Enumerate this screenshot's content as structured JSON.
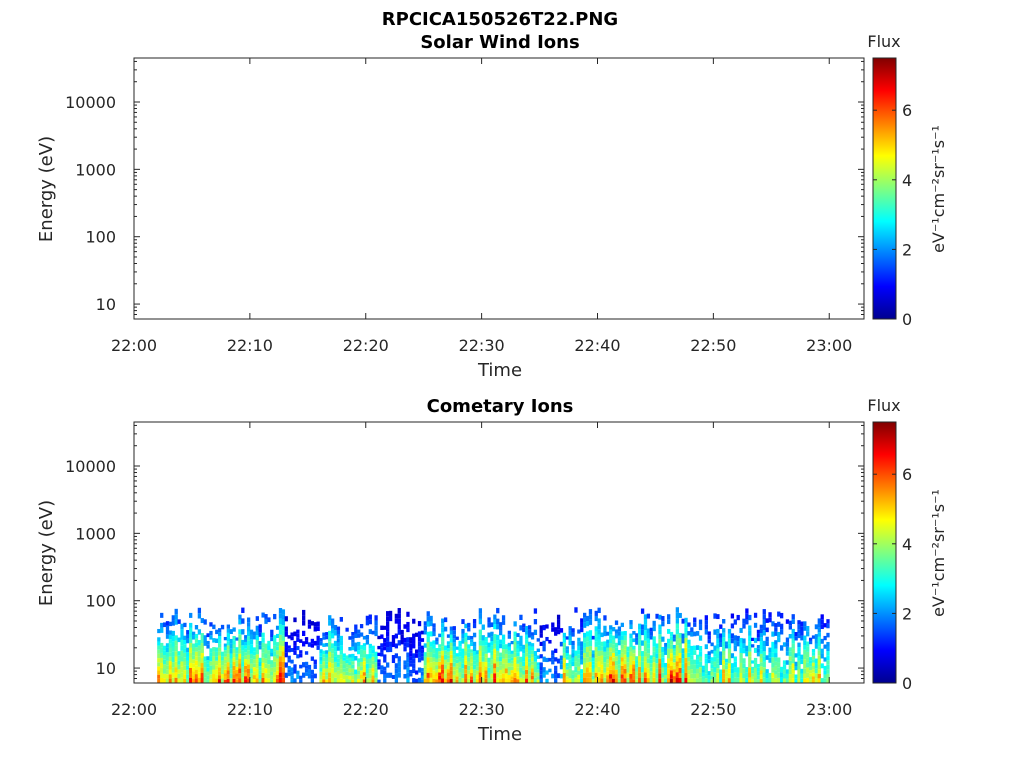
{
  "figure": {
    "title": "RPCICA150526T22.PNG"
  },
  "colors": {
    "jet": [
      "#00008f",
      "#0000ff",
      "#00ffff",
      "#ffff00",
      "#ff0000",
      "#800000"
    ],
    "axis": "#262626",
    "background": "#ffffff"
  },
  "chart_data": [
    {
      "type": "heatmap",
      "title": "Solar Wind Ions",
      "xlabel": "Time",
      "ylabel": "Energy (eV)",
      "x_ticks": [
        "22:00",
        "22:10",
        "22:20",
        "22:30",
        "22:40",
        "22:50",
        "23:00"
      ],
      "y_ticks": [
        "10",
        "100",
        "1000",
        "10000"
      ],
      "y_scale": "log",
      "xlim": [
        "22:00",
        "23:03"
      ],
      "ylim": [
        6,
        45000
      ],
      "colorbar": {
        "title": "Flux",
        "label": "eV⁻¹cm⁻²sr⁻¹s⁻¹",
        "ticks": [
          "0",
          "2",
          "4",
          "6"
        ],
        "range": [
          0,
          7.5
        ]
      },
      "cells": []
    },
    {
      "type": "heatmap",
      "title": "Cometary Ions",
      "xlabel": "Time",
      "ylabel": "Energy (eV)",
      "x_ticks": [
        "22:00",
        "22:10",
        "22:20",
        "22:30",
        "22:40",
        "22:50",
        "23:00"
      ],
      "y_ticks": [
        "10",
        "100",
        "1000",
        "10000"
      ],
      "y_scale": "log",
      "xlim": [
        "22:00",
        "23:03"
      ],
      "ylim": [
        6,
        45000
      ],
      "colorbar": {
        "title": "Flux",
        "label": "eV⁻¹cm⁻²sr⁻¹s⁻¹",
        "ticks": [
          "0",
          "2",
          "4",
          "6"
        ],
        "range": [
          0,
          7.5
        ]
      },
      "data_energy_range_ev": [
        6,
        80
      ],
      "activity_intervals": [
        {
          "start": "22:02",
          "end": "22:13",
          "peak_flux": 7.2
        },
        {
          "start": "22:13",
          "end": "22:16",
          "peak_flux": 3.0
        },
        {
          "start": "22:16",
          "end": "22:21",
          "peak_flux": 7.0
        },
        {
          "start": "22:21",
          "end": "22:25",
          "peak_flux": 2.5
        },
        {
          "start": "22:25",
          "end": "22:35",
          "peak_flux": 7.3
        },
        {
          "start": "22:35",
          "end": "22:37",
          "peak_flux": 3.0
        },
        {
          "start": "22:37",
          "end": "22:40",
          "peak_flux": 6.2
        },
        {
          "start": "22:40",
          "end": "22:49",
          "peak_flux": 7.3
        },
        {
          "start": "22:49",
          "end": "23:00",
          "peak_flux": 6.0
        }
      ]
    }
  ]
}
